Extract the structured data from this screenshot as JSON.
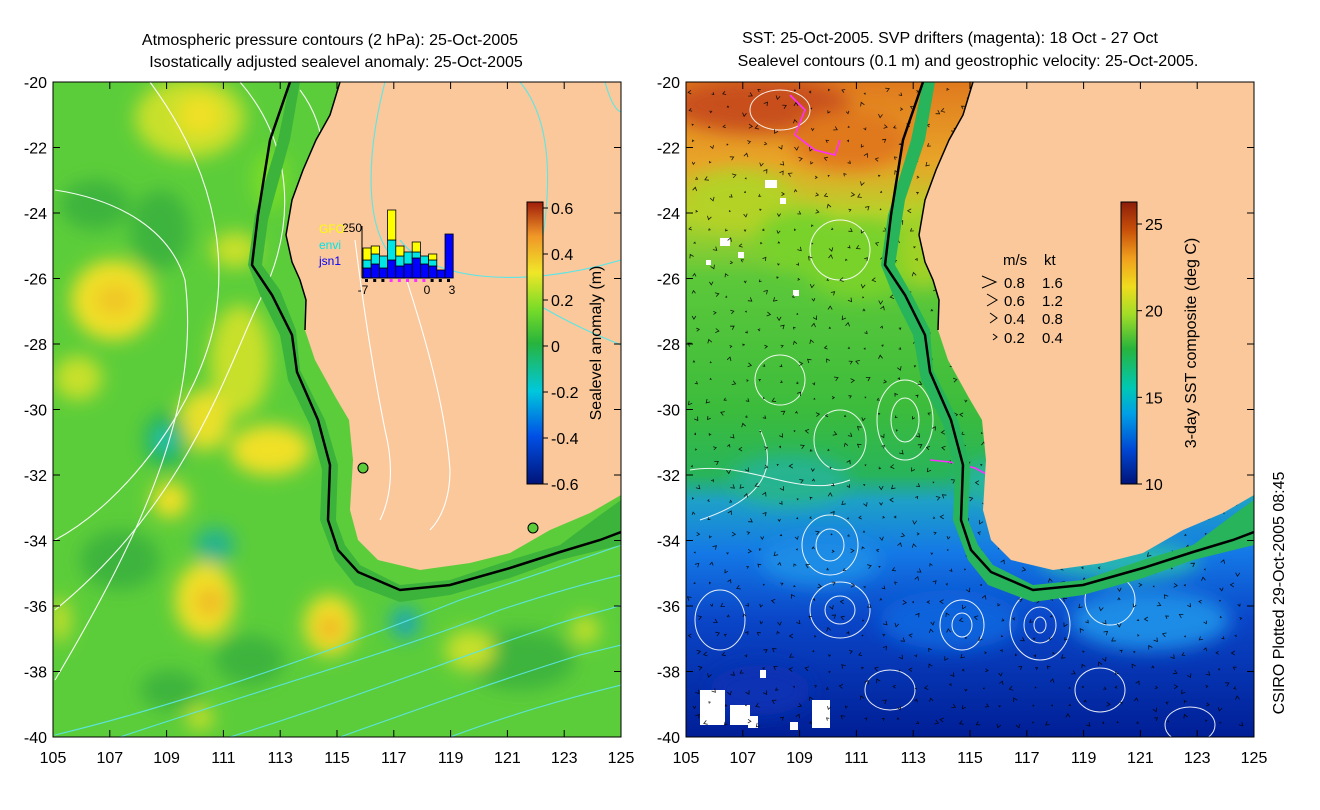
{
  "left_panel": {
    "title_line1": "Atmospheric pressure contours (2 hPa): 25-Oct-2005",
    "title_line2": "Isostatically adjusted sealevel anomaly: 25-Oct-2005",
    "colorbar_label": "Sealevel anomaly (m)",
    "colorbar_ticks": [
      "0.6",
      "0.4",
      "0.2",
      "0",
      "-0.2",
      "-0.4",
      "-0.6"
    ],
    "inset": {
      "ymax_label": "250",
      "legend": [
        {
          "label": "GFO",
          "color": "#ffff00"
        },
        {
          "label": "envi",
          "color": "#00e5e5"
        },
        {
          "label": "jsn1",
          "color": "#0000ff"
        }
      ],
      "x_ticks": [
        "-7",
        "0",
        "3"
      ]
    }
  },
  "right_panel": {
    "title_line1": "SST: 25-Oct-2005. SVP drifters (magenta): 18 Oct - 27 Oct",
    "title_line2": "Sealevel contours (0.1 m) and geostrophic velocity: 25-Oct-2005.",
    "colorbar_label": "3-day SST composite (deg C)",
    "colorbar_ticks": [
      "25",
      "20",
      "15",
      "10"
    ],
    "velocity_legend": {
      "header_ms": "m/s",
      "header_kt": "kt",
      "rows": [
        {
          "ms": "0.8",
          "kt": "1.6"
        },
        {
          "ms": "0.6",
          "kt": "1.2"
        },
        {
          "ms": "0.4",
          "kt": "0.8"
        },
        {
          "ms": "0.2",
          "kt": "0.4"
        }
      ]
    }
  },
  "axes": {
    "lat_ticks": [
      "-20",
      "-22",
      "-24",
      "-26",
      "-28",
      "-30",
      "-32",
      "-34",
      "-36",
      "-38",
      "-40"
    ],
    "lon_ticks": [
      "105",
      "107",
      "109",
      "111",
      "113",
      "115",
      "117",
      "119",
      "121",
      "123",
      "125"
    ]
  },
  "credit": "CSIRO Plotted 29-Oct-2005 08:45",
  "colors": {
    "land": "#fac89b",
    "shelf": "#3cb43c",
    "coast": "#000000",
    "ssl_colormap": [
      "#001478",
      "#0050e6",
      "#00c8dc",
      "#28b43c",
      "#78dc28",
      "#f0e628",
      "#f09628",
      "#a01e0a"
    ],
    "sst_colormap": [
      "#001478",
      "#0046d2",
      "#00a0e6",
      "#00c8b4",
      "#28b43c",
      "#a0dc28",
      "#f0dc1e",
      "#f0a01e",
      "#c8500a",
      "#8c1e0a"
    ]
  }
}
